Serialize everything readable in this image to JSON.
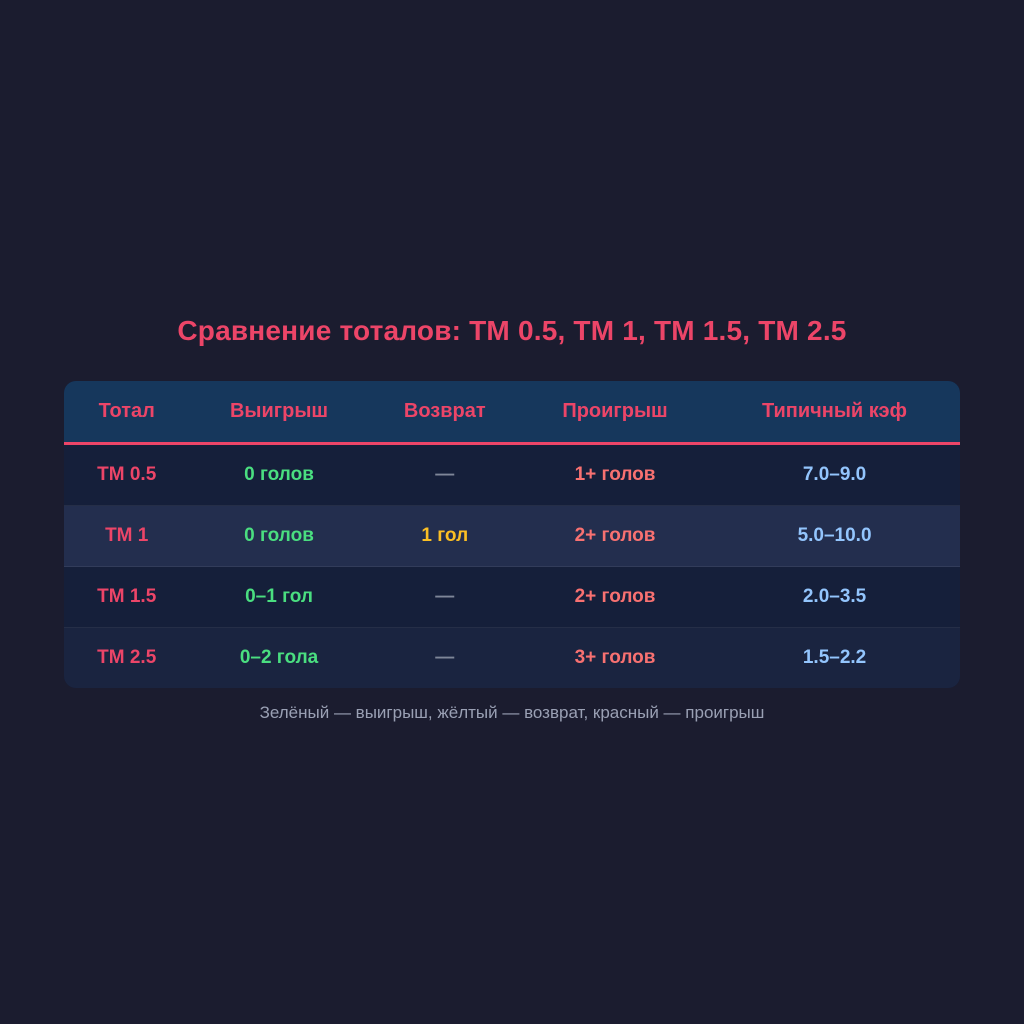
{
  "page": {
    "title": "Сравнение тоталов: ТМ 0.5, ТМ 1, ТМ 1.5, ТМ 2.5",
    "legend": "Зелёный — выигрыш, жёлтый — возврат, красный — проигрыш"
  },
  "chart_data": {
    "type": "table",
    "title": "Сравнение тоталов: ТМ 0.5, ТМ 1, ТМ 1.5, ТМ 2.5",
    "columns": [
      "Тотал",
      "Выигрыш",
      "Возврат",
      "Проигрыш",
      "Типичный кэф"
    ],
    "rows": [
      [
        "ТМ 0.5",
        "0 голов",
        "—",
        "1+ голов",
        "7.0–9.0"
      ],
      [
        "ТМ 1",
        "0 голов",
        "1 гол",
        "2+ голов",
        "5.0–10.0"
      ],
      [
        "ТМ 1.5",
        "0–1 гол",
        "—",
        "2+ голов",
        "2.0–3.5"
      ],
      [
        "ТМ 2.5",
        "0–2 гола",
        "—",
        "3+ голов",
        "1.5–2.2"
      ]
    ],
    "footnote": "Зелёный — выигрыш, жёлтый — возврат, красный — проигрыш"
  },
  "colors": {
    "page_background": "#1b1c2f",
    "card_header_bg": "#16375c",
    "row_bg": "#151f3a",
    "row_alt_bg": "#232e4e",
    "row_soft_bg": "#1a2440",
    "accent_pink": "#ec4568",
    "win_green": "#4ade80",
    "return_yellow": "#fbbf24",
    "lose_red": "#f87171",
    "odds_blue": "#93c5fd",
    "dash_gray": "#7e8698",
    "legend_gray": "#9aa0b4"
  }
}
